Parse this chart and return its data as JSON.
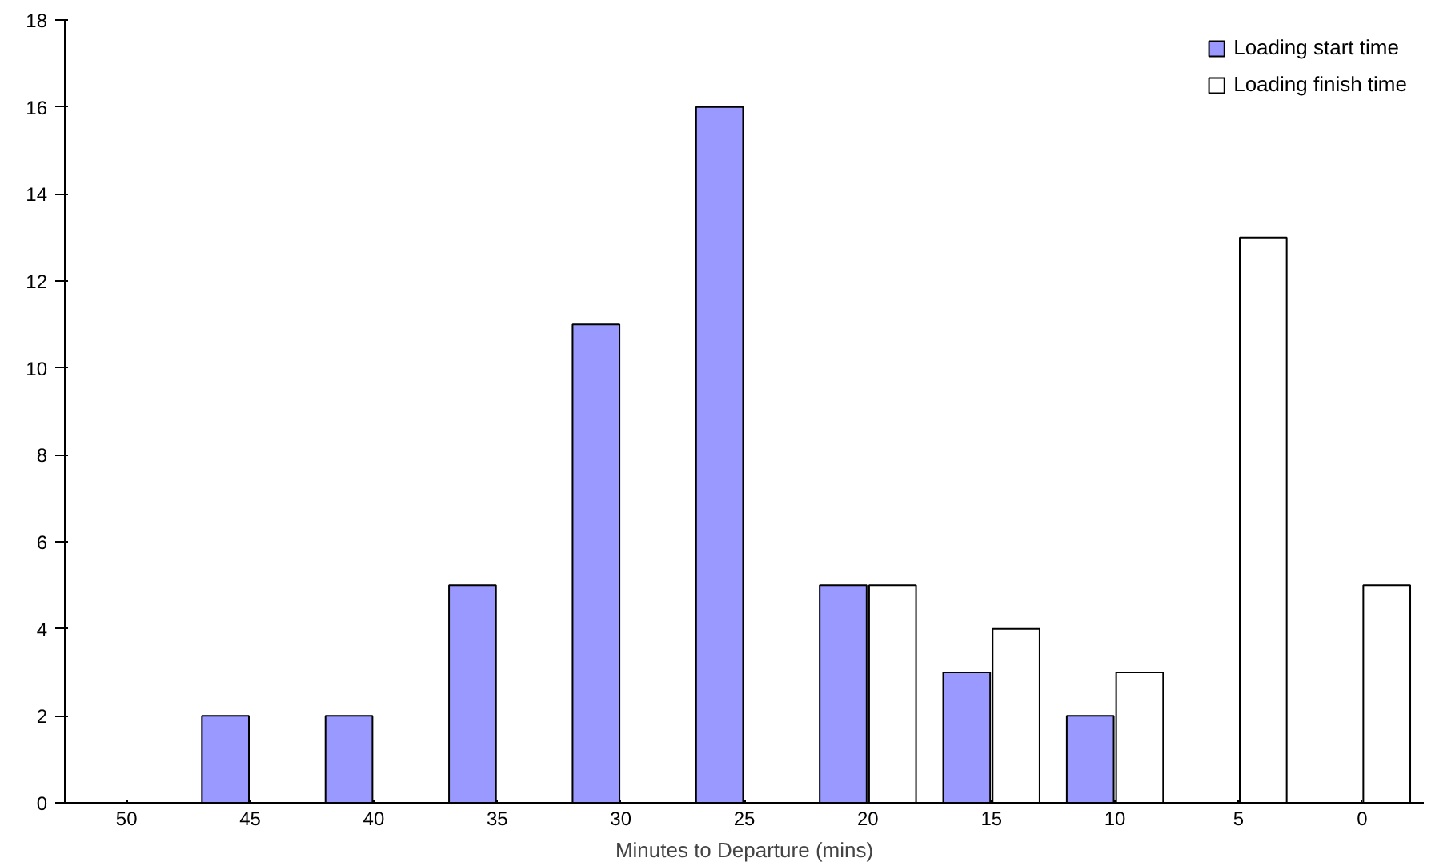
{
  "chart_data": {
    "type": "bar",
    "xlabel": "Minutes to Departure (mins)",
    "categories": [
      "50",
      "45",
      "40",
      "35",
      "30",
      "25",
      "20",
      "15",
      "10",
      "5",
      "0"
    ],
    "series": [
      {
        "name": "Loading start time",
        "color": "#9999ff",
        "values": [
          null,
          2,
          2,
          5,
          11,
          16,
          5,
          3,
          2,
          null,
          null
        ]
      },
      {
        "name": "Loading finish time",
        "color": "#ffffff",
        "values": [
          null,
          null,
          null,
          null,
          null,
          null,
          5,
          4,
          3,
          13,
          5
        ]
      }
    ],
    "ylim": [
      0,
      18
    ],
    "yticks": [
      0,
      2,
      4,
      6,
      8,
      10,
      12,
      14,
      16,
      18
    ],
    "grid": false,
    "legend": "top right"
  }
}
